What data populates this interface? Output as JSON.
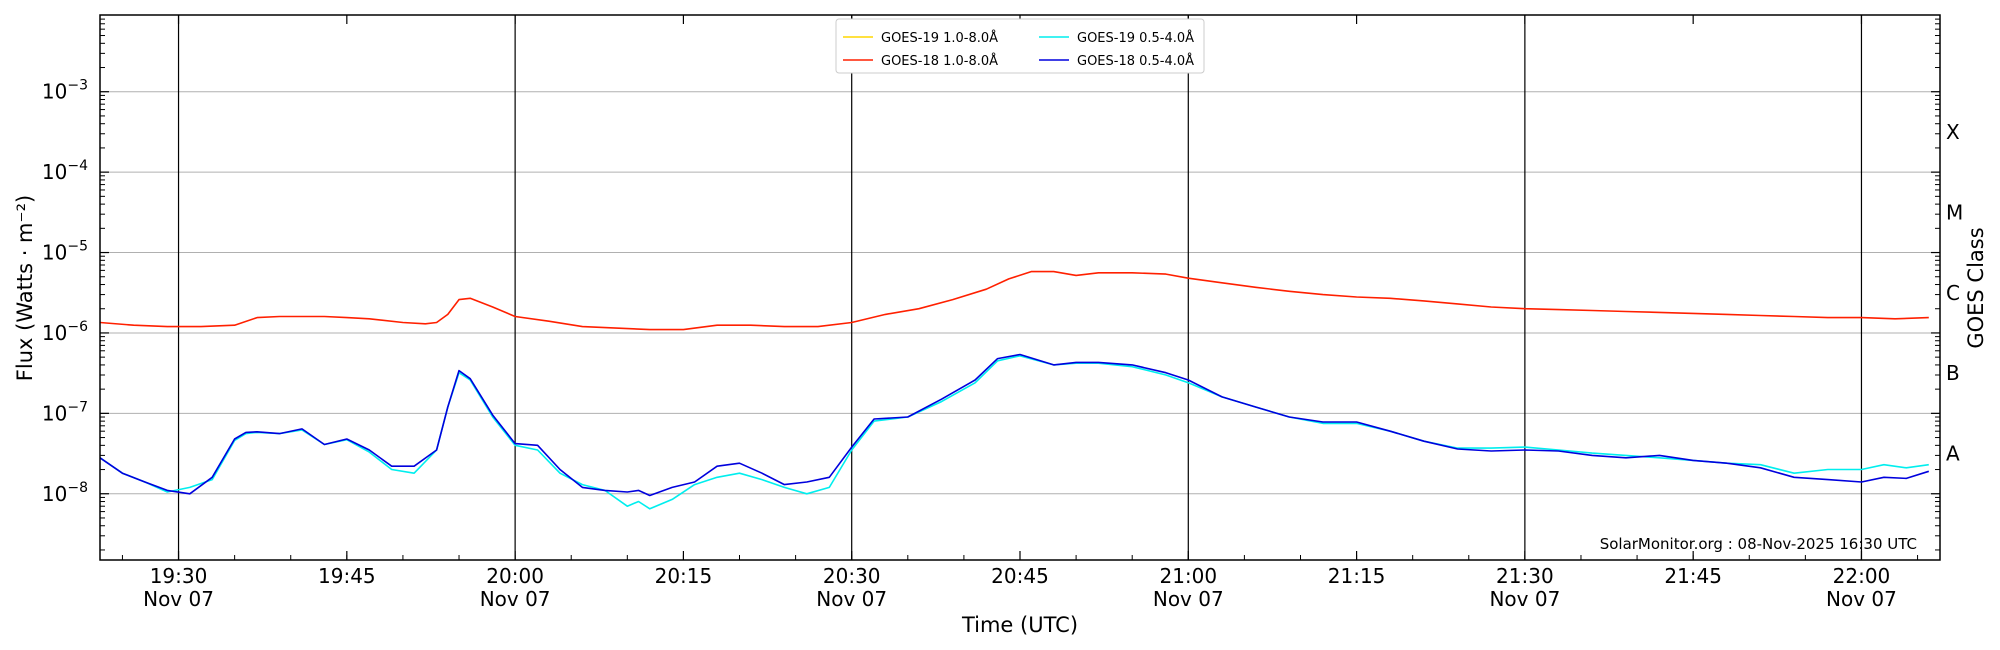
{
  "chart_data": {
    "type": "line",
    "xlabel": "Time (UTC)",
    "ylabel": "Flux (Watts · m⁻²)",
    "y2label": "GOES Class",
    "yscale": "log",
    "ylim": [
      1.5e-09,
      0.009
    ],
    "xlim": [
      "2025-11-07 19:23",
      "2025-11-07 22:07"
    ],
    "grid": "horizontal at decades",
    "legend_placement": "top-center",
    "credit": "SolarMonitor.org : 08-Nov-2025 16:30 UTC",
    "x_ticks": [
      {
        "time": "19:30",
        "label": "19:30",
        "date": "Nov 07",
        "major": true
      },
      {
        "time": "19:45",
        "label": "19:45",
        "date": "",
        "major": false
      },
      {
        "time": "20:00",
        "label": "20:00",
        "date": "Nov 07",
        "major": true
      },
      {
        "time": "20:15",
        "label": "20:15",
        "date": "",
        "major": false
      },
      {
        "time": "20:30",
        "label": "20:30",
        "date": "Nov 07",
        "major": true
      },
      {
        "time": "20:45",
        "label": "20:45",
        "date": "",
        "major": false
      },
      {
        "time": "21:00",
        "label": "21:00",
        "date": "Nov 07",
        "major": true
      },
      {
        "time": "21:15",
        "label": "21:15",
        "date": "",
        "major": false
      },
      {
        "time": "21:30",
        "label": "21:30",
        "date": "Nov 07",
        "major": true
      },
      {
        "time": "21:45",
        "label": "21:45",
        "date": "",
        "major": false
      },
      {
        "time": "22:00",
        "label": "22:00",
        "date": "Nov 07",
        "major": true
      }
    ],
    "y_ticks": [
      {
        "value": 1e-08,
        "base": "10",
        "exp": "−8"
      },
      {
        "value": 1e-07,
        "base": "10",
        "exp": "−7"
      },
      {
        "value": 1e-06,
        "base": "10",
        "exp": "−6"
      },
      {
        "value": 1e-05,
        "base": "10",
        "exp": "−5"
      },
      {
        "value": 0.0001,
        "base": "10",
        "exp": "−4"
      },
      {
        "value": 0.001,
        "base": "10",
        "exp": "−3"
      }
    ],
    "goes_classes": [
      {
        "label": "A",
        "value": 3.16e-08
      },
      {
        "label": "B",
        "value": 3.16e-07
      },
      {
        "label": "C",
        "value": 3.16e-06
      },
      {
        "label": "M",
        "value": 3.16e-05
      },
      {
        "label": "X",
        "value": 0.000316
      }
    ],
    "series": [
      {
        "name": "GOES-19 1.0-8.0Å",
        "color": "#ffd700",
        "legend_order": 0,
        "x": [],
        "y": []
      },
      {
        "name": "GOES-18 1.0-8.0Å",
        "color": "#ff2000",
        "legend_order": 1,
        "x": [
          "19:23",
          "19:26",
          "19:29",
          "19:32",
          "19:35",
          "19:37",
          "19:39",
          "19:41",
          "19:43",
          "19:45",
          "19:47",
          "19:50",
          "19:52",
          "19:53",
          "19:54",
          "19:55",
          "19:56",
          "19:58",
          "20:00",
          "20:03",
          "20:06",
          "20:09",
          "20:12",
          "20:15",
          "20:18",
          "20:21",
          "20:24",
          "20:27",
          "20:30",
          "20:33",
          "20:36",
          "20:39",
          "20:42",
          "20:44",
          "20:46",
          "20:48",
          "20:50",
          "20:52",
          "20:55",
          "20:58",
          "21:00",
          "21:03",
          "21:06",
          "21:09",
          "21:12",
          "21:15",
          "21:18",
          "21:21",
          "21:24",
          "21:27",
          "21:30",
          "21:33",
          "21:36",
          "21:39",
          "21:42",
          "21:45",
          "21:48",
          "21:51",
          "21:54",
          "21:57",
          "22:00",
          "22:03",
          "22:06"
        ],
        "y": [
          1.35e-06,
          1.25e-06,
          1.2e-06,
          1.2e-06,
          1.25e-06,
          1.55e-06,
          1.6e-06,
          1.6e-06,
          1.6e-06,
          1.55e-06,
          1.5e-06,
          1.35e-06,
          1.3e-06,
          1.35e-06,
          1.7e-06,
          2.6e-06,
          2.7e-06,
          2.1e-06,
          1.6e-06,
          1.4e-06,
          1.2e-06,
          1.15e-06,
          1.1e-06,
          1.1e-06,
          1.25e-06,
          1.25e-06,
          1.2e-06,
          1.2e-06,
          1.35e-06,
          1.7e-06,
          2e-06,
          2.6e-06,
          3.5e-06,
          4.7e-06,
          5.8e-06,
          5.8e-06,
          5.2e-06,
          5.6e-06,
          5.6e-06,
          5.4e-06,
          4.8e-06,
          4.2e-06,
          3.7e-06,
          3.3e-06,
          3e-06,
          2.8e-06,
          2.7e-06,
          2.5e-06,
          2.3e-06,
          2.1e-06,
          2e-06,
          1.95e-06,
          1.9e-06,
          1.85e-06,
          1.8e-06,
          1.75e-06,
          1.7e-06,
          1.65e-06,
          1.6e-06,
          1.55e-06,
          1.55e-06,
          1.5e-06,
          1.55e-06
        ]
      },
      {
        "name": "GOES-19 0.5-4.0Å",
        "color": "#00eeee",
        "legend_order": 2,
        "x": [
          "19:23",
          "19:25",
          "19:27",
          "19:29",
          "19:31",
          "19:33",
          "19:35",
          "19:36",
          "19:37",
          "19:39",
          "19:41",
          "19:43",
          "19:45",
          "19:47",
          "19:49",
          "19:51",
          "19:53",
          "19:54",
          "19:55",
          "19:56",
          "19:58",
          "20:00",
          "20:02",
          "20:04",
          "20:06",
          "20:08",
          "20:10",
          "20:11",
          "20:12",
          "20:14",
          "20:16",
          "20:18",
          "20:20",
          "20:22",
          "20:24",
          "20:26",
          "20:28",
          "20:30",
          "20:32",
          "20:35",
          "20:38",
          "20:41",
          "20:43",
          "20:45",
          "20:48",
          "20:50",
          "20:52",
          "20:55",
          "20:58",
          "21:00",
          "21:03",
          "21:06",
          "21:09",
          "21:12",
          "21:15",
          "21:18",
          "21:21",
          "21:24",
          "21:27",
          "21:30",
          "21:33",
          "21:36",
          "21:39",
          "21:42",
          "21:45",
          "21:48",
          "21:51",
          "21:54",
          "21:57",
          "22:00",
          "22:02",
          "22:04",
          "22:06"
        ],
        "y": [
          2.8e-08,
          1.8e-08,
          1.4e-08,
          1.05e-08,
          1.2e-08,
          1.5e-08,
          4.6e-08,
          5.6e-08,
          5.8e-08,
          5.6e-08,
          6.2e-08,
          4.1e-08,
          4.7e-08,
          3.3e-08,
          2e-08,
          1.8e-08,
          3.5e-08,
          1.2e-07,
          3.2e-07,
          2.6e-07,
          9e-08,
          4e-08,
          3.5e-08,
          1.8e-08,
          1.3e-08,
          1.1e-08,
          7e-09,
          8e-09,
          6.5e-09,
          8.5e-09,
          1.3e-08,
          1.6e-08,
          1.8e-08,
          1.5e-08,
          1.2e-08,
          1e-08,
          1.2e-08,
          3.5e-08,
          8e-08,
          9e-08,
          1.4e-07,
          2.4e-07,
          4.5e-07,
          5.2e-07,
          4e-07,
          4.2e-07,
          4.2e-07,
          3.8e-07,
          3e-07,
          2.4e-07,
          1.6e-07,
          1.2e-07,
          9e-08,
          7.5e-08,
          7.5e-08,
          6e-08,
          4.5e-08,
          3.7e-08,
          3.7e-08,
          3.8e-08,
          3.5e-08,
          3.2e-08,
          3e-08,
          2.8e-08,
          2.6e-08,
          2.4e-08,
          2.3e-08,
          1.8e-08,
          2e-08,
          2e-08,
          2.3e-08,
          2.1e-08,
          2.3e-08
        ]
      },
      {
        "name": "GOES-18 0.5-4.0Å",
        "color": "#0000dd",
        "legend_order": 3,
        "x": [
          "19:23",
          "19:25",
          "19:27",
          "19:29",
          "19:31",
          "19:33",
          "19:35",
          "19:36",
          "19:37",
          "19:39",
          "19:41",
          "19:43",
          "19:45",
          "19:47",
          "19:49",
          "19:51",
          "19:53",
          "19:54",
          "19:55",
          "19:56",
          "19:58",
          "20:00",
          "20:02",
          "20:04",
          "20:06",
          "20:08",
          "20:10",
          "20:11",
          "20:12",
          "20:14",
          "20:16",
          "20:18",
          "20:20",
          "20:22",
          "20:24",
          "20:26",
          "20:28",
          "20:30",
          "20:32",
          "20:35",
          "20:38",
          "20:41",
          "20:43",
          "20:45",
          "20:48",
          "20:50",
          "20:52",
          "20:55",
          "20:58",
          "21:00",
          "21:03",
          "21:06",
          "21:09",
          "21:12",
          "21:15",
          "21:18",
          "21:21",
          "21:24",
          "21:27",
          "21:30",
          "21:33",
          "21:36",
          "21:39",
          "21:42",
          "21:45",
          "21:48",
          "21:51",
          "21:54",
          "21:57",
          "22:00",
          "22:02",
          "22:04",
          "22:06"
        ],
        "y": [
          2.8e-08,
          1.8e-08,
          1.4e-08,
          1.1e-08,
          1e-08,
          1.6e-08,
          4.8e-08,
          5.8e-08,
          5.9e-08,
          5.6e-08,
          6.4e-08,
          4.1e-08,
          4.8e-08,
          3.5e-08,
          2.2e-08,
          2.2e-08,
          3.5e-08,
          1.2e-07,
          3.4e-07,
          2.7e-07,
          9.5e-08,
          4.2e-08,
          4e-08,
          2e-08,
          1.2e-08,
          1.1e-08,
          1.05e-08,
          1.1e-08,
          9.5e-09,
          1.2e-08,
          1.4e-08,
          2.2e-08,
          2.4e-08,
          1.8e-08,
          1.3e-08,
          1.4e-08,
          1.6e-08,
          3.8e-08,
          8.5e-08,
          9e-08,
          1.5e-07,
          2.6e-07,
          4.8e-07,
          5.4e-07,
          4e-07,
          4.3e-07,
          4.3e-07,
          4e-07,
          3.2e-07,
          2.6e-07,
          1.6e-07,
          1.2e-07,
          9e-08,
          7.8e-08,
          7.8e-08,
          6e-08,
          4.5e-08,
          3.6e-08,
          3.4e-08,
          3.5e-08,
          3.4e-08,
          3e-08,
          2.8e-08,
          3e-08,
          2.6e-08,
          2.4e-08,
          2.1e-08,
          1.6e-08,
          1.5e-08,
          1.4e-08,
          1.6e-08,
          1.55e-08,
          1.9e-08
        ]
      }
    ]
  }
}
